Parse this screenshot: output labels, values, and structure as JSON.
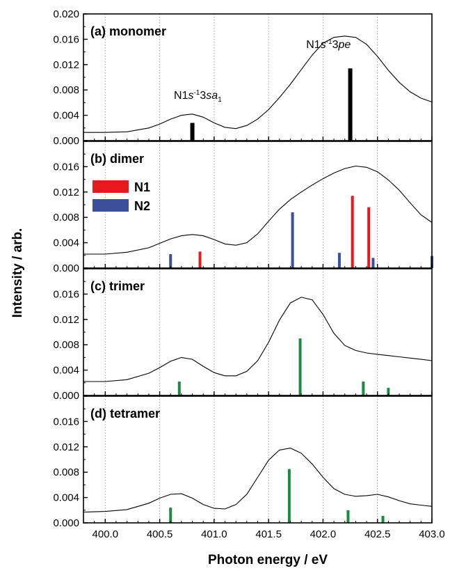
{
  "chart_data": {
    "type": "line",
    "xlabel": "Photon energy / eV",
    "ylabel": "Intensity / arb.",
    "xlim": [
      399.8,
      403.0
    ],
    "ylim": [
      0,
      0.02
    ],
    "x_tick_labels": [
      "400.0",
      "400.5",
      "401.0",
      "401.5",
      "402.0",
      "402.5",
      "403.0"
    ],
    "x_tick_values": [
      400.0,
      400.5,
      401.0,
      401.5,
      402.0,
      402.5,
      403.0
    ],
    "y_tick_labels": [
      "0.000",
      "0.004",
      "0.008",
      "0.012",
      "0.016",
      "0.020"
    ],
    "y_tick_values": [
      0,
      0.004,
      0.008,
      0.012,
      0.016,
      0.02
    ],
    "grid": "vertical dotted",
    "panels": [
      {
        "label": "(a) monomer",
        "annotations": [
          {
            "parts": [
              "N1",
              "s",
              "-1",
              "3",
              "sa",
              "1"
            ],
            "x": 400.85,
            "y": 0.0066
          },
          {
            "parts": [
              "N1",
              "s",
              "-1",
              "3",
              "pe"
            ],
            "x": 402.05,
            "y": 0.0146
          }
        ],
        "curve": {
          "x": [
            399.8,
            400.0,
            400.2,
            400.4,
            400.5,
            400.6,
            400.7,
            400.8,
            400.9,
            401.0,
            401.1,
            401.2,
            401.3,
            401.4,
            401.5,
            401.6,
            401.7,
            401.8,
            401.9,
            402.0,
            402.1,
            402.2,
            402.3,
            402.4,
            402.5,
            402.6,
            402.7,
            402.8,
            402.9,
            403.0
          ],
          "y": [
            0.0013,
            0.0013,
            0.0014,
            0.002,
            0.0026,
            0.0034,
            0.004,
            0.0042,
            0.0037,
            0.0028,
            0.0021,
            0.0019,
            0.0024,
            0.0034,
            0.0049,
            0.0068,
            0.0089,
            0.0112,
            0.0135,
            0.0154,
            0.0163,
            0.0165,
            0.0163,
            0.0152,
            0.0133,
            0.0111,
            0.0092,
            0.0077,
            0.0067,
            0.0061
          ]
        },
        "sticks": [
          {
            "x": 400.8,
            "y": 0.0028,
            "color": "#000000"
          },
          {
            "x": 402.25,
            "y": 0.0114,
            "color": "#000000"
          }
        ]
      },
      {
        "label": "(b) dimer",
        "legend": [
          {
            "name": "N1",
            "color": "#e8191d"
          },
          {
            "name": "N2",
            "color": "#3d4f9b"
          }
        ],
        "curve": {
          "x": [
            399.8,
            400.0,
            400.2,
            400.4,
            400.5,
            400.6,
            400.7,
            400.8,
            400.9,
            401.0,
            401.1,
            401.2,
            401.3,
            401.4,
            401.5,
            401.6,
            401.7,
            401.8,
            401.9,
            402.0,
            402.1,
            402.2,
            402.3,
            402.4,
            402.5,
            402.6,
            402.7,
            402.8,
            402.9,
            403.0
          ],
          "y": [
            0.0022,
            0.0022,
            0.0025,
            0.0032,
            0.0039,
            0.0046,
            0.0051,
            0.0053,
            0.0051,
            0.0045,
            0.0038,
            0.0036,
            0.004,
            0.0054,
            0.0074,
            0.0093,
            0.0108,
            0.012,
            0.0131,
            0.0141,
            0.015,
            0.0157,
            0.0161,
            0.0159,
            0.0152,
            0.0139,
            0.0123,
            0.0103,
            0.0084,
            0.0072
          ]
        },
        "sticks": [
          {
            "x": 400.6,
            "y": 0.0022,
            "color": "#3d4f9b"
          },
          {
            "x": 400.87,
            "y": 0.0026,
            "color": "#e8191d"
          },
          {
            "x": 401.72,
            "y": 0.0088,
            "color": "#3d4f9b"
          },
          {
            "x": 402.15,
            "y": 0.0024,
            "color": "#3d4f9b"
          },
          {
            "x": 402.27,
            "y": 0.0114,
            "color": "#e8191d"
          },
          {
            "x": 402.42,
            "y": 0.0096,
            "color": "#e8191d"
          },
          {
            "x": 402.46,
            "y": 0.0016,
            "color": "#3d4f9b"
          },
          {
            "x": 403.0,
            "y": 0.0019,
            "color": "#3d4f9b"
          }
        ]
      },
      {
        "label": "(c) trimer",
        "curve": {
          "x": [
            399.8,
            400.0,
            400.2,
            400.4,
            400.5,
            400.6,
            400.7,
            400.8,
            400.9,
            401.0,
            401.1,
            401.2,
            401.3,
            401.4,
            401.5,
            401.6,
            401.7,
            401.8,
            401.9,
            402.0,
            402.1,
            402.2,
            402.3,
            402.4,
            402.5,
            402.6,
            402.7,
            402.8,
            402.9,
            403.0
          ],
          "y": [
            0.0022,
            0.0022,
            0.0025,
            0.0035,
            0.0044,
            0.0054,
            0.006,
            0.0057,
            0.0046,
            0.0036,
            0.0031,
            0.0031,
            0.0038,
            0.0055,
            0.0084,
            0.0119,
            0.0146,
            0.0155,
            0.0151,
            0.0128,
            0.0098,
            0.0079,
            0.0071,
            0.0067,
            0.0065,
            0.0063,
            0.0061,
            0.0059,
            0.0057,
            0.0055
          ]
        },
        "sticks": [
          {
            "x": 400.68,
            "y": 0.0022,
            "color": "#1d8a42"
          },
          {
            "x": 401.79,
            "y": 0.009,
            "color": "#1d8a42"
          },
          {
            "x": 402.37,
            "y": 0.0022,
            "color": "#1d8a42"
          },
          {
            "x": 402.6,
            "y": 0.0012,
            "color": "#1d8a42"
          }
        ]
      },
      {
        "label": "(d) tetramer",
        "curve": {
          "x": [
            399.8,
            400.0,
            400.2,
            400.4,
            400.5,
            400.6,
            400.7,
            400.8,
            400.9,
            401.0,
            401.1,
            401.2,
            401.3,
            401.4,
            401.5,
            401.6,
            401.7,
            401.8,
            401.9,
            402.0,
            402.1,
            402.2,
            402.3,
            402.4,
            402.5,
            402.6,
            402.7,
            402.8,
            402.9,
            403.0
          ],
          "y": [
            0.0017,
            0.0018,
            0.0021,
            0.0031,
            0.0039,
            0.0045,
            0.0046,
            0.0039,
            0.0029,
            0.0023,
            0.0022,
            0.0029,
            0.0045,
            0.0072,
            0.0099,
            0.0115,
            0.0118,
            0.011,
            0.0093,
            0.0072,
            0.0054,
            0.0045,
            0.0042,
            0.0043,
            0.0045,
            0.0041,
            0.0035,
            0.003,
            0.0028,
            0.0026
          ]
        },
        "sticks": [
          {
            "x": 400.6,
            "y": 0.0024,
            "color": "#1d8a42"
          },
          {
            "x": 401.69,
            "y": 0.0085,
            "color": "#1d8a42"
          },
          {
            "x": 402.23,
            "y": 0.002,
            "color": "#1d8a42"
          },
          {
            "x": 402.55,
            "y": 0.0011,
            "color": "#1d8a42"
          }
        ]
      }
    ]
  }
}
